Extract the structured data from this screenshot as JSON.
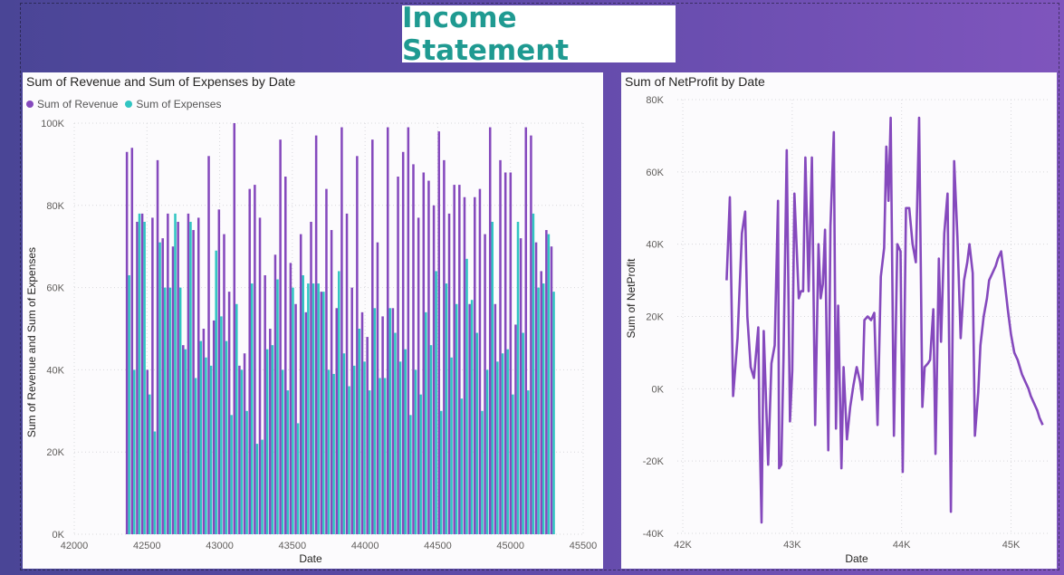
{
  "page_title": "Income Statement",
  "colors": {
    "revenue": "#8549bd",
    "expenses": "#31c5c2",
    "netprofit": "#8549bd",
    "title": "#1f9a91"
  },
  "chart_data": [
    {
      "type": "bar",
      "title": "Sum of Revenue and Sum of Expenses by Date",
      "xlabel": "Date",
      "ylabel": "Sum of Revenue and Sum of Expenses",
      "xlim": [
        42000,
        45500
      ],
      "ylim": [
        0,
        100000
      ],
      "x_ticks": [
        42000,
        42500,
        43000,
        43500,
        44000,
        44500,
        45000,
        45500
      ],
      "x_tick_labels": [
        "42000",
        "42500",
        "43000",
        "43500",
        "44000",
        "44500",
        "45000",
        "45500"
      ],
      "y_ticks": [
        0,
        20000,
        40000,
        60000,
        80000,
        100000
      ],
      "y_tick_labels": [
        "0K",
        "20K",
        "40K",
        "60K",
        "80K",
        "100K"
      ],
      "x_range_of_bars": [
        42370,
        45290
      ],
      "grid": true,
      "legend_position": "top-left",
      "series": [
        {
          "name": "Sum of Revenue",
          "values": [
            93000,
            94000,
            76000,
            78000,
            40000,
            77000,
            91000,
            72000,
            78000,
            70000,
            76000,
            46000,
            78000,
            74000,
            77000,
            50000,
            92000,
            52000,
            79000,
            73000,
            59000,
            100000,
            41000,
            44000,
            84000,
            85000,
            77000,
            63000,
            50000,
            68000,
            96000,
            87000,
            66000,
            56000,
            73000,
            54000,
            76000,
            97000,
            59000,
            84000,
            74000,
            55000,
            99000,
            78000,
            60000,
            92000,
            54000,
            48000,
            96000,
            71000,
            53000,
            99000,
            55000,
            87000,
            93000,
            99000,
            90000,
            77000,
            88000,
            86000,
            80000,
            98000,
            91000,
            78000,
            85000,
            85000,
            82000,
            56000,
            82000,
            84000,
            73000,
            99000,
            56000,
            91000,
            88000,
            88000,
            51000,
            72000,
            99000,
            97000,
            71000,
            64000,
            74000,
            70000
          ]
        },
        {
          "name": "Sum of Expenses",
          "values": [
            63000,
            40000,
            78000,
            76000,
            34000,
            25000,
            71000,
            60000,
            60000,
            78000,
            60000,
            45000,
            76000,
            38000,
            47000,
            43000,
            41000,
            69000,
            53000,
            47000,
            29000,
            56000,
            40000,
            30000,
            61000,
            22000,
            23000,
            45000,
            46000,
            62000,
            40000,
            35000,
            60000,
            27000,
            63000,
            61000,
            61000,
            61000,
            59000,
            40000,
            39000,
            64000,
            44000,
            36000,
            41000,
            50000,
            42000,
            35000,
            55000,
            38000,
            38000,
            55000,
            49000,
            42000,
            45000,
            29000,
            40000,
            34000,
            54000,
            46000,
            64000,
            30000,
            61000,
            43000,
            56000,
            33000,
            67000,
            57000,
            49000,
            30000,
            40000,
            76000,
            42000,
            44000,
            45000,
            34000,
            76000,
            49000,
            35000,
            78000,
            60000,
            61000,
            73000,
            59000
          ]
        }
      ]
    },
    {
      "type": "line",
      "title": "Sum of NetProfit by Date",
      "xlabel": "Date",
      "ylabel": "Sum of NetProfit",
      "xlim": [
        41950,
        45360
      ],
      "ylim": [
        -40000,
        80000
      ],
      "x_ticks": [
        42000,
        43000,
        44000,
        45000
      ],
      "x_tick_labels": [
        "42K",
        "43K",
        "44K",
        "45K"
      ],
      "y_ticks": [
        -40000,
        -20000,
        0,
        20000,
        40000,
        60000,
        80000
      ],
      "y_tick_labels": [
        "-40K",
        "-20K",
        "0K",
        "20K",
        "40K",
        "60K",
        "80K"
      ],
      "grid": true,
      "series": [
        {
          "name": "Sum of NetProfit",
          "x": [
            42400,
            42430,
            42460,
            42500,
            42540,
            42570,
            42590,
            42620,
            42650,
            42690,
            42700,
            42720,
            42740,
            42780,
            42810,
            42840,
            42870,
            42880,
            42900,
            42920,
            42950,
            42980,
            43000,
            43020,
            43060,
            43080,
            43100,
            43120,
            43150,
            43180,
            43210,
            43240,
            43260,
            43280,
            43300,
            43330,
            43350,
            43380,
            43400,
            43420,
            43450,
            43470,
            43500,
            43530,
            43560,
            43590,
            43620,
            43640,
            43660,
            43690,
            43720,
            43750,
            43780,
            43810,
            43840,
            43860,
            43880,
            43900,
            43930,
            43960,
            43990,
            44010,
            44040,
            44070,
            44100,
            44130,
            44160,
            44190,
            44210,
            44240,
            44260,
            44290,
            44310,
            44340,
            44360,
            44390,
            44420,
            44450,
            44480,
            44510,
            44540,
            44570,
            44600,
            44620,
            44650,
            44670,
            44700,
            44720,
            44750,
            44780,
            44800,
            44830,
            44860,
            44880,
            44910,
            44940,
            44970,
            45000,
            45030,
            45060,
            45080,
            45100,
            45130,
            45160,
            45180,
            45210,
            45240,
            45260,
            45290
          ],
          "y": [
            30000,
            53000,
            -2000,
            14000,
            43000,
            49000,
            20000,
            6000,
            3000,
            17000,
            -8000,
            -37000,
            16000,
            -21000,
            7000,
            12000,
            52000,
            -22000,
            -21000,
            8000,
            66000,
            -9000,
            5000,
            54000,
            25000,
            27000,
            27000,
            64000,
            27000,
            64000,
            -10000,
            40000,
            25000,
            29000,
            44000,
            -17000,
            45000,
            71000,
            -11000,
            23000,
            -22000,
            6000,
            -14000,
            -5000,
            1000,
            6000,
            2000,
            -3000,
            19000,
            20000,
            19000,
            21000,
            -10000,
            31000,
            39000,
            67000,
            52000,
            75000,
            -13000,
            40000,
            38000,
            -23000,
            50000,
            50000,
            40000,
            35000,
            75000,
            -5000,
            6000,
            7000,
            8000,
            22000,
            -18000,
            36000,
            13000,
            43000,
            54000,
            -34000,
            63000,
            42000,
            14000,
            30000,
            35000,
            40000,
            32000,
            -13000,
            -1000,
            12000,
            20000,
            25000,
            30000,
            32000,
            34000,
            36000,
            38000,
            30000,
            22000,
            15000,
            10000,
            8000,
            6000,
            4000,
            2000,
            0,
            -2000,
            -4000,
            -6000,
            -8000,
            -10000
          ]
        }
      ]
    }
  ]
}
